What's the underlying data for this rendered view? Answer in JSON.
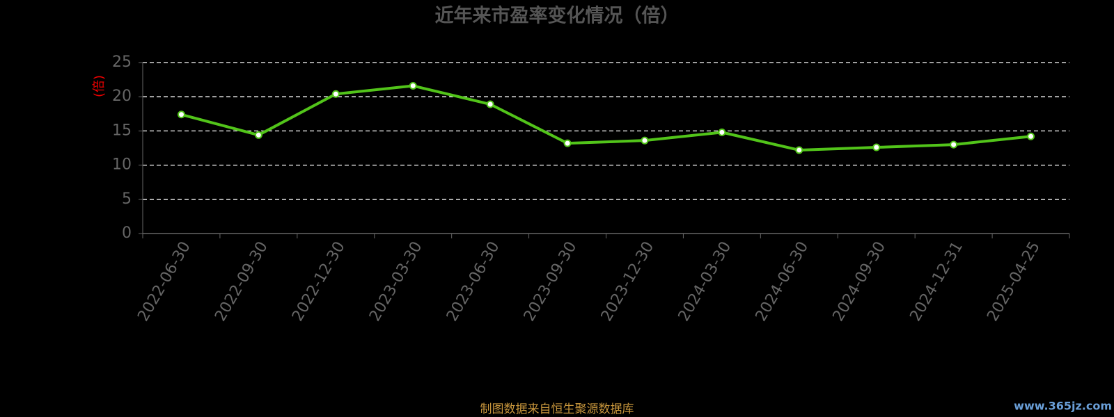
{
  "chart_data": {
    "type": "line",
    "title": "近年来市盈率变化情况（倍）",
    "y_label": "(倍)",
    "categories": [
      "2022-06-30",
      "2022-09-30",
      "2022-12-30",
      "2023-03-30",
      "2023-06-30",
      "2023-09-30",
      "2023-12-30",
      "2024-03-30",
      "2024-06-30",
      "2024-09-30",
      "2024-12-31",
      "2025-04-25"
    ],
    "series": [
      {
        "color": "#52c41a",
        "values": [
          17.4,
          14.4,
          20.4,
          21.6,
          18.9,
          13.2,
          13.6,
          14.8,
          12.2,
          12.6,
          13.0,
          14.2
        ]
      }
    ],
    "ylim": [
      0,
      25
    ],
    "yticks": [
      0,
      5,
      10,
      15,
      20,
      25
    ],
    "grid": true,
    "source": "制图数据来自恒生聚源数据库",
    "watermark": "www.365jz.com"
  }
}
